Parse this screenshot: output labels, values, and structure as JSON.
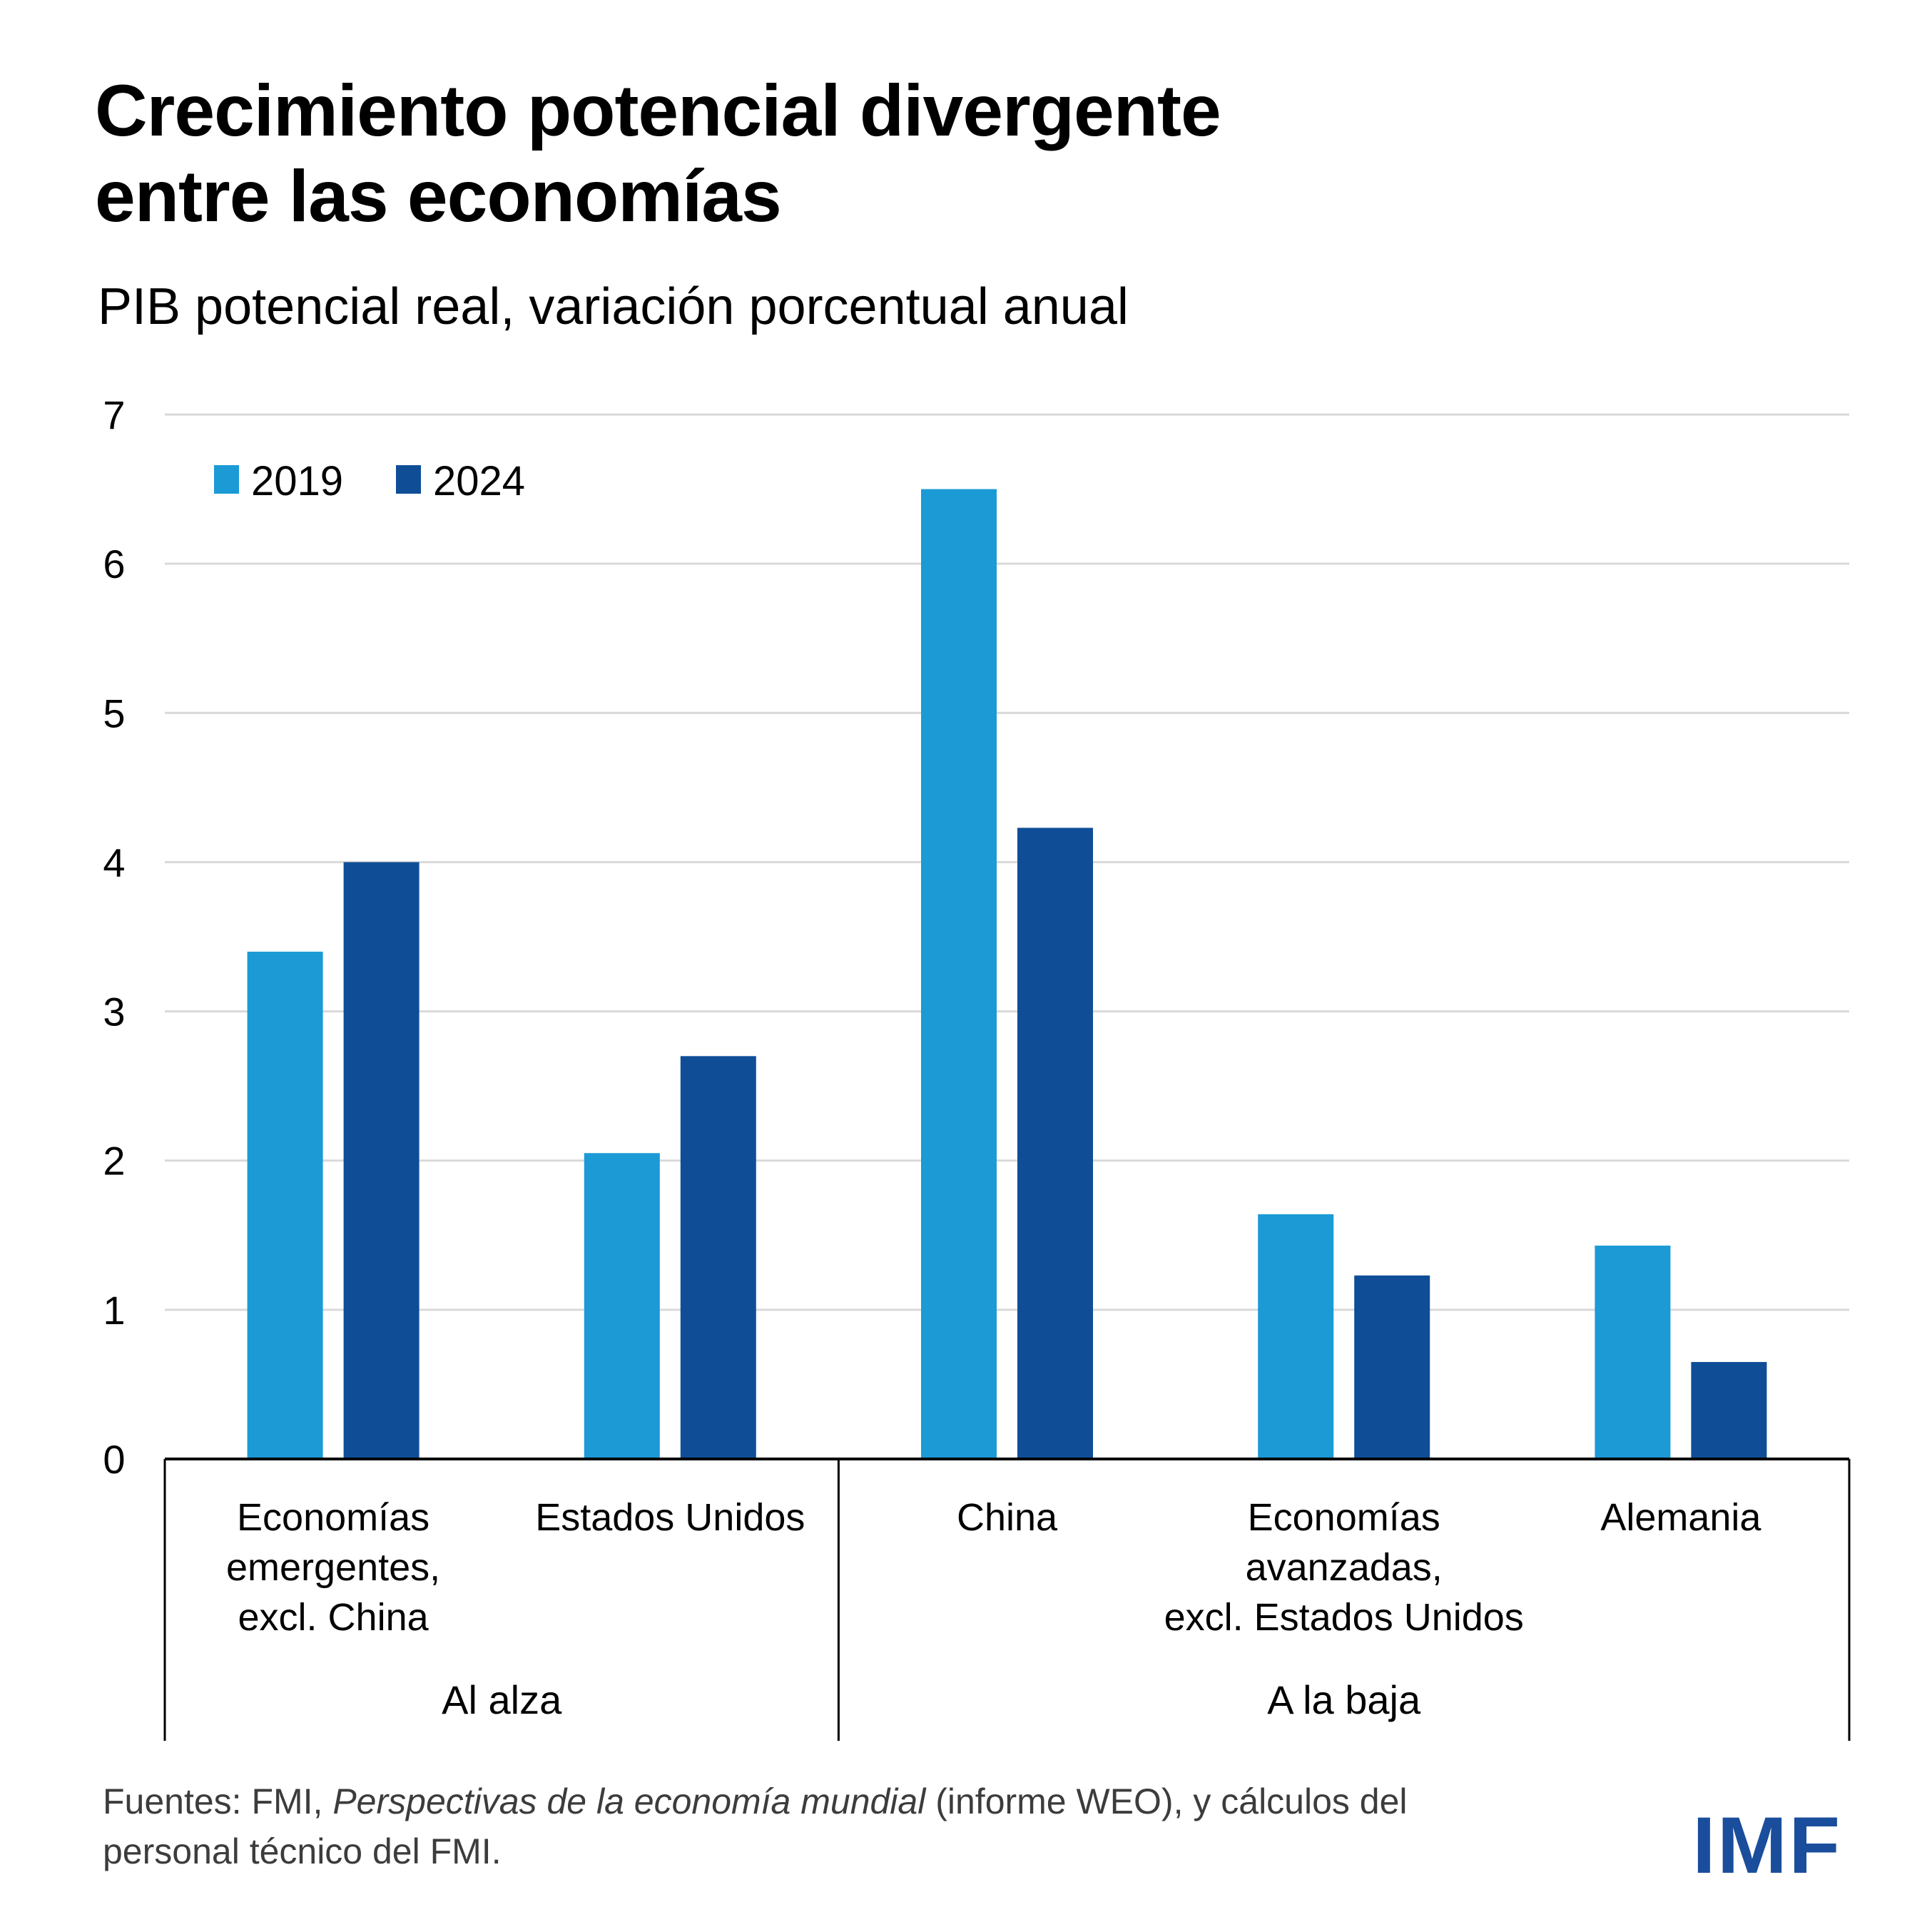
{
  "header": {
    "title_lines": [
      "Crecimiento potencial divergente",
      "entre las economías"
    ],
    "subtitle": "PIB potencial real, variación porcentual anual"
  },
  "footer": {
    "source_prefix": "Fuentes: FMI, ",
    "source_italic": "Perspectivas de la economía mundial",
    "source_suffix": " (informe WEO), y cálculos del",
    "source_line2": "personal técnico del FMI.",
    "logo_text": "IMF"
  },
  "colors": {
    "series_2019": "#1b9ad6",
    "series_2024": "#0f4e97",
    "grid": "#d9d9d9",
    "axis": "#000000",
    "logo": "#1a4e9c"
  },
  "chart_data": {
    "type": "bar",
    "title": "Crecimiento potencial divergente entre las economías",
    "subtitle": "PIB potencial real, variación porcentual anual",
    "xlabel": "",
    "ylabel": "",
    "ylim": [
      0,
      7
    ],
    "yticks": [
      "0",
      "1",
      "2",
      "3",
      "4",
      "5",
      "6",
      "7"
    ],
    "grid": true,
    "legend_position": "top-left",
    "categories": [
      [
        "Economías",
        "emergentes,",
        "excl. China"
      ],
      [
        "Estados Unidos"
      ],
      [
        "China"
      ],
      [
        "Economías",
        "avanzadas,",
        "excl. Estados Unidos"
      ],
      [
        "Alemania"
      ]
    ],
    "category_names": [
      "Economías emergentes, excl. China",
      "Estados Unidos",
      "China",
      "Economías avanzadas, excl. Estados Unidos",
      "Alemania"
    ],
    "groups": [
      {
        "label": "Al alza",
        "categories": [
          0,
          1
        ]
      },
      {
        "label": "A la baja",
        "categories": [
          2,
          3,
          4
        ]
      }
    ],
    "series": [
      {
        "name": "2019",
        "color": "#1b9ad6",
        "values": [
          3.4,
          2.05,
          6.5,
          1.64,
          1.43
        ]
      },
      {
        "name": "2024",
        "color": "#0f4e97",
        "values": [
          4.0,
          2.7,
          4.23,
          1.23,
          0.65
        ]
      }
    ]
  }
}
